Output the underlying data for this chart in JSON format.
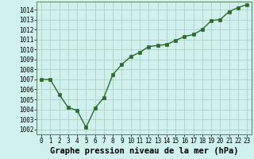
{
  "x": [
    0,
    1,
    2,
    3,
    4,
    5,
    6,
    7,
    8,
    9,
    10,
    11,
    12,
    13,
    14,
    15,
    16,
    17,
    18,
    19,
    20,
    21,
    22,
    23
  ],
  "y": [
    1007.0,
    1007.0,
    1005.5,
    1004.2,
    1003.9,
    1002.2,
    1004.1,
    1005.2,
    1007.5,
    1008.5,
    1009.3,
    1009.7,
    1010.3,
    1010.4,
    1010.5,
    1010.9,
    1011.3,
    1011.5,
    1012.0,
    1012.9,
    1013.0,
    1013.8,
    1014.2,
    1014.5
  ],
  "line_color": "#2d6a2d",
  "marker": "s",
  "marker_size": 2.5,
  "bg_color": "#cff0ec",
  "grid_color": "#a8c8c0",
  "ylim": [
    1001.5,
    1014.8
  ],
  "xlim": [
    -0.5,
    23.5
  ],
  "yticks": [
    1002,
    1003,
    1004,
    1005,
    1006,
    1007,
    1008,
    1009,
    1010,
    1011,
    1012,
    1013,
    1014
  ],
  "xticks": [
    0,
    1,
    2,
    3,
    4,
    5,
    6,
    7,
    8,
    9,
    10,
    11,
    12,
    13,
    14,
    15,
    16,
    17,
    18,
    19,
    20,
    21,
    22,
    23
  ],
  "xlabel": "Graphe pression niveau de la mer (hPa)",
  "xlabel_fontsize": 7.5,
  "tick_fontsize": 5.5,
  "line_width": 1.0
}
